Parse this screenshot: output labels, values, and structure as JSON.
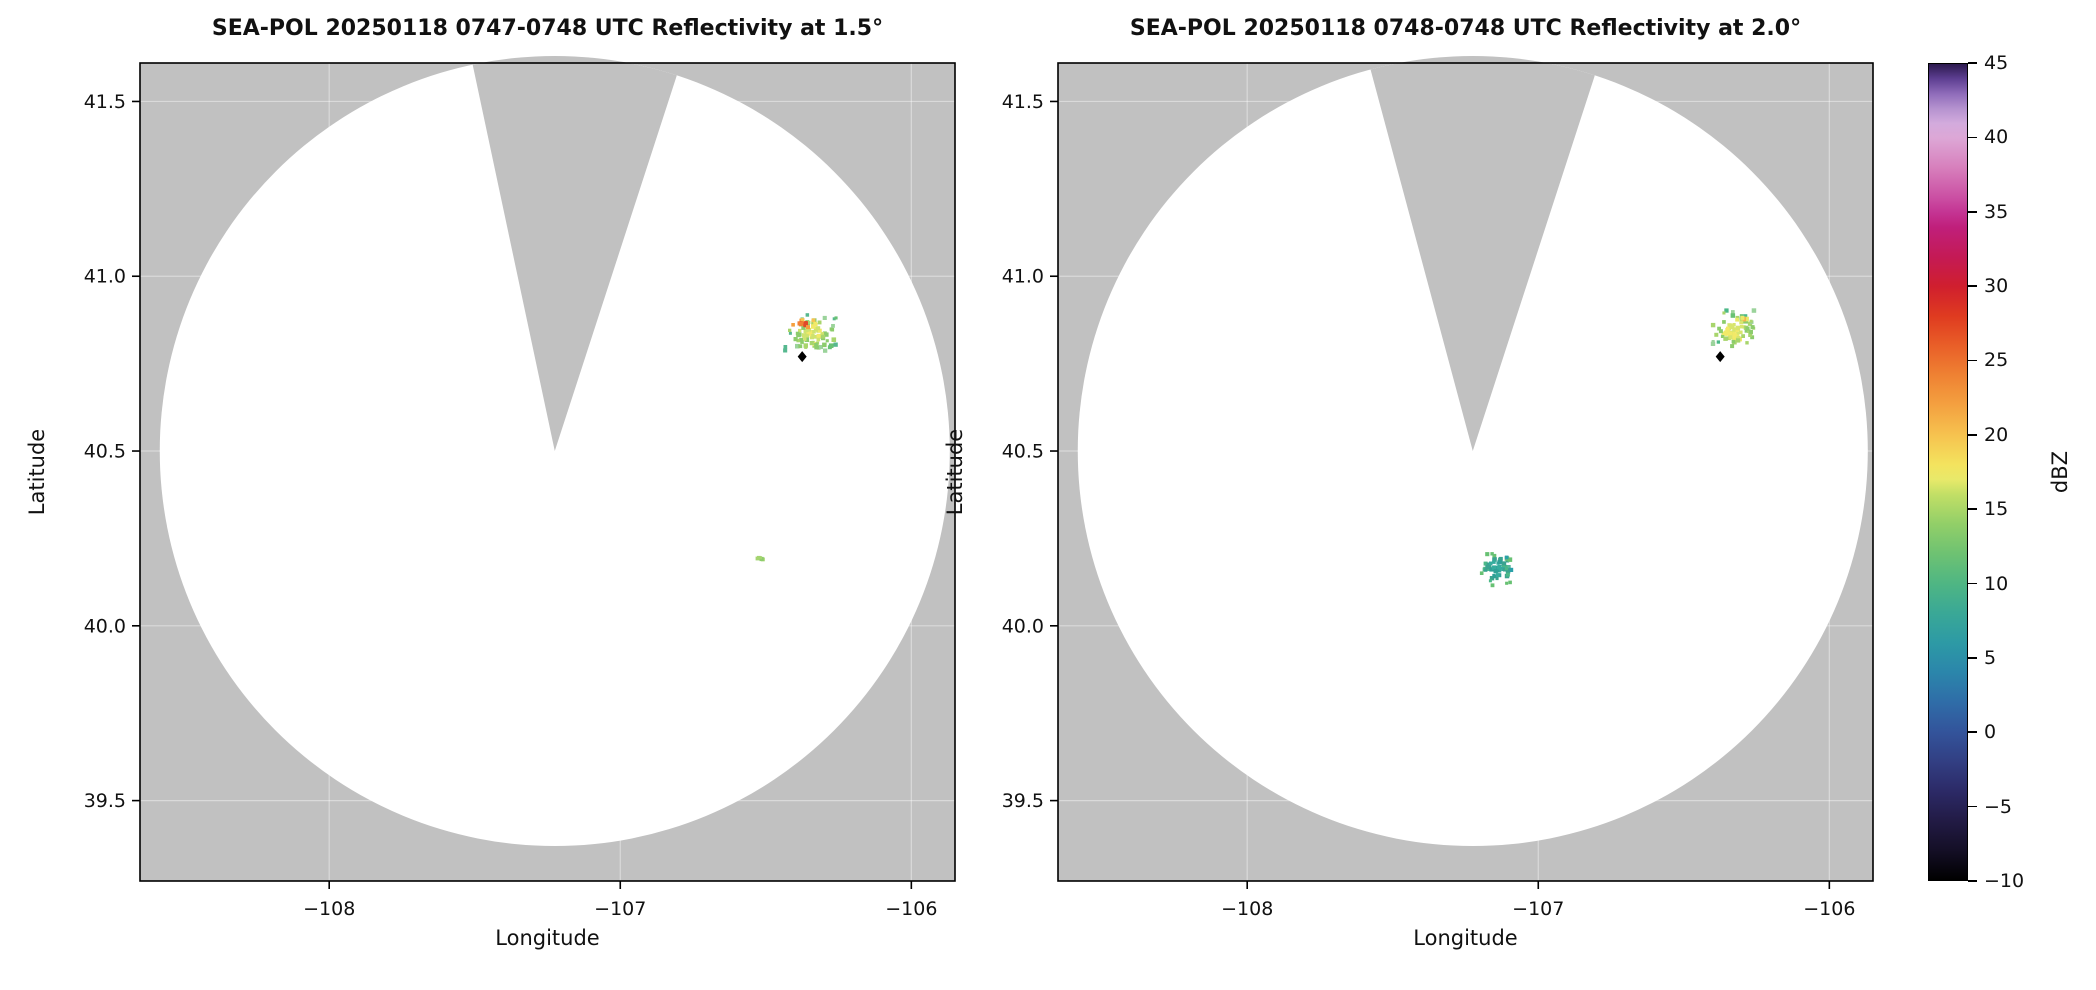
{
  "figure": {
    "background": "#ffffff"
  },
  "chart_data": {
    "type": "radar_ppi_reflectivity",
    "instrument": "SEA-POL",
    "panels": [
      {
        "title": "SEA-POL 20250118 0747-0748 UTC Reflectivity at 1.5°",
        "xlabel": "Longitude",
        "ylabel": "Latitude",
        "xlim": [
          -108.65,
          -105.85
        ],
        "ylim": [
          39.27,
          41.61
        ],
        "xticks": [
          -108,
          -107,
          -106
        ],
        "xtick_labels": [
          "−108",
          "−107",
          "−106"
        ],
        "yticks": [
          41.5,
          41.0,
          40.5,
          40.0,
          39.5
        ],
        "ytick_labels": [
          "41.5",
          "41.0",
          "40.5",
          "40.0",
          "39.5"
        ],
        "radar_center": {
          "lon": -107.225,
          "lat": 40.5
        },
        "coverage_radius_deg_lat": 1.13,
        "blanked_sector_azimuth_deg": [
          -12,
          18
        ],
        "site_marker": {
          "lon": -106.375,
          "lat": 40.77,
          "shape": "diamond",
          "color": "#000000"
        },
        "echo_clusters": [
          {
            "name": "convective-cell-ne",
            "center_lon": -106.34,
            "center_lat": 40.835,
            "spread_lon_deg": 0.1,
            "spread_lat_deg": 0.055,
            "n_gates": 85,
            "seed": 7,
            "dbz_range": [
              10,
              22
            ],
            "colors": {
              "core": [
                "#f2e968",
                "#cfe36e"
              ],
              "mid": [
                "#a8d56c",
                "#8ccc6c"
              ],
              "edge": [
                "#68c173",
                "#56b88f",
                "#9bd39b"
              ]
            }
          },
          {
            "name": "convective-core-hot",
            "center_lon": -106.37,
            "center_lat": 40.865,
            "spread_lon_deg": 0.05,
            "spread_lat_deg": 0.015,
            "n_gates": 16,
            "seed": 11,
            "dbz_range": [
              20,
              32
            ],
            "colors": {
              "core": [
                "#e0482a",
                "#f07f35"
              ],
              "mid": [
                "#f5a03e",
                "#f6c24f"
              ],
              "edge": [
                "#f2e968"
              ]
            }
          },
          {
            "name": "weak-echo-speck",
            "center_lon": -106.52,
            "center_lat": 40.19,
            "spread_lon_deg": 0.015,
            "spread_lat_deg": 0.01,
            "n_gates": 5,
            "seed": 3,
            "dbz_range": [
              8,
              14
            ],
            "colors": {
              "core": [
                "#8ccc6c"
              ],
              "mid": [
                "#a5d470"
              ],
              "edge": [
                "#68c173"
              ]
            }
          }
        ]
      },
      {
        "title": "SEA-POL 20250118 0748-0748 UTC Reflectivity at 2.0°",
        "xlabel": "Longitude",
        "ylabel": "Latitude",
        "xlim": [
          -108.65,
          -105.85
        ],
        "ylim": [
          39.27,
          41.61
        ],
        "xticks": [
          -108,
          -107,
          -106
        ],
        "xtick_labels": [
          "−108",
          "−107",
          "−106"
        ],
        "yticks": [
          41.5,
          41.0,
          40.5,
          40.0,
          39.5
        ],
        "ytick_labels": [
          "41.5",
          "41.0",
          "40.5",
          "40.0",
          "39.5"
        ],
        "radar_center": {
          "lon": -107.225,
          "lat": 40.5
        },
        "coverage_radius_deg_lat": 1.13,
        "blanked_sector_azimuth_deg": [
          -15,
          18
        ],
        "site_marker": {
          "lon": -106.375,
          "lat": 40.77,
          "shape": "diamond",
          "color": "#000000"
        },
        "echo_clusters": [
          {
            "name": "convective-cell-ne",
            "center_lon": -106.33,
            "center_lat": 40.845,
            "spread_lon_deg": 0.095,
            "spread_lat_deg": 0.06,
            "n_gates": 78,
            "seed": 19,
            "dbz_range": [
              8,
              18
            ],
            "colors": {
              "core": [
                "#f2e968",
                "#d8e56e"
              ],
              "mid": [
                "#a8d56c",
                "#8ccc6c"
              ],
              "edge": [
                "#68c173",
                "#4bb887",
                "#9bd39b"
              ]
            }
          },
          {
            "name": "cell-yellow-spot",
            "center_lon": -106.3,
            "center_lat": 40.875,
            "spread_lon_deg": 0.02,
            "spread_lat_deg": 0.01,
            "n_gates": 5,
            "seed": 23,
            "dbz_range": [
              17,
              21
            ],
            "colors": {
              "core": [
                "#f5b34a"
              ],
              "mid": [
                "#e8e96a"
              ],
              "edge": [
                "#d8e56e"
              ]
            }
          },
          {
            "name": "shallow-echo-sw",
            "center_lon": -107.145,
            "center_lat": 40.16,
            "spread_lon_deg": 0.06,
            "spread_lat_deg": 0.05,
            "n_gates": 72,
            "seed": 31,
            "dbz_range": [
              5,
              13
            ],
            "colors": {
              "core": [
                "#2f9f96",
                "#35ac9e"
              ],
              "mid": [
                "#3aa390",
                "#4bb887"
              ],
              "edge": [
                "#56b89b",
                "#68c173",
                "#2aa0a8"
              ]
            }
          }
        ]
      }
    ],
    "colorbar": {
      "label": "dBZ",
      "min": -10,
      "max": 45,
      "ticks": [
        45,
        40,
        35,
        30,
        25,
        20,
        15,
        10,
        5,
        0,
        -5,
        -10
      ],
      "tick_labels": [
        "45",
        "40",
        "35",
        "30",
        "25",
        "20",
        "15",
        "10",
        "5",
        "0",
        "−5",
        "−10"
      ],
      "gradient_stops": [
        [
          -10,
          "#000000"
        ],
        [
          -8,
          "#140f26"
        ],
        [
          -6,
          "#221b45"
        ],
        [
          -4,
          "#2c2a67"
        ],
        [
          -2,
          "#323f83"
        ],
        [
          0,
          "#33549b"
        ],
        [
          2,
          "#2f6da8"
        ],
        [
          4,
          "#2b86ab"
        ],
        [
          6,
          "#2d9aa5"
        ],
        [
          8,
          "#3aa896"
        ],
        [
          10,
          "#4fb683"
        ],
        [
          12,
          "#6ec272"
        ],
        [
          14,
          "#92cf68"
        ],
        [
          16,
          "#c2df66"
        ],
        [
          17,
          "#e8e96a"
        ],
        [
          18,
          "#f4e35e"
        ],
        [
          20,
          "#f6c24f"
        ],
        [
          22,
          "#f4a140"
        ],
        [
          24,
          "#ef8233"
        ],
        [
          26,
          "#e95f28"
        ],
        [
          28,
          "#df3b20"
        ],
        [
          30,
          "#d01f2e"
        ],
        [
          32,
          "#c41a55"
        ],
        [
          34,
          "#c01f7b"
        ],
        [
          35,
          "#c43493"
        ],
        [
          36,
          "#cb4fa3"
        ],
        [
          38,
          "#d77fbc"
        ],
        [
          40,
          "#dda7d6"
        ],
        [
          41,
          "#d3abdd"
        ],
        [
          42,
          "#b592cf"
        ],
        [
          43,
          "#8f6cba"
        ],
        [
          44,
          "#5e3f92"
        ],
        [
          45,
          "#2c1a4e"
        ]
      ]
    },
    "style_colors": {
      "coverage_fill": "#ffffff",
      "no_data_fill": "#c1c1c1",
      "grid_line": "rgba(255,255,255,0.4)",
      "axis_line": "#000000",
      "text": "#111111"
    }
  }
}
